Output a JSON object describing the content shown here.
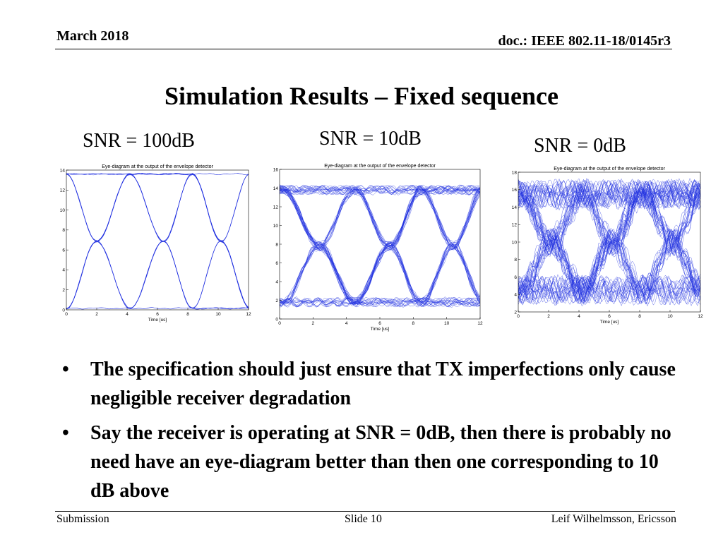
{
  "header": {
    "date": "March 2018",
    "doc": "doc.: IEEE 802.11-18/0145r3"
  },
  "title": "Simulation Results – Fixed sequence",
  "snr_labels": [
    "SNR = 100dB",
    "SNR = 10dB",
    "SNR = 0dB"
  ],
  "bullets": [
    "The specification should just ensure that TX imperfections only cause negligible receiver degradation",
    "Say the receiver is operating at SNR = 0dB, then there is probably no need have an eye-diagram better than then one corresponding to 10 dB above"
  ],
  "bullet_symbol": "•",
  "footer": {
    "left": "Submission",
    "center": "Slide 10",
    "right": "Leif Wilhelmsson, Ericsson"
  },
  "colors": {
    "trace": "#1f2fe0"
  },
  "chart_data": [
    {
      "type": "line",
      "title": "Eye-diagram at the output of the envelope detector",
      "xlabel": "Time [us]",
      "ylabel": "",
      "xlim": [
        0,
        12
      ],
      "ylim": [
        0,
        14
      ],
      "xticks": [
        0,
        2,
        4,
        6,
        8,
        10,
        12
      ],
      "yticks": [
        0,
        2,
        4,
        6,
        8,
        10,
        12,
        14
      ],
      "crossings": [
        2,
        6.4,
        10.2
      ],
      "low": 0.15,
      "high": 13.6,
      "noise": 0.08,
      "traces": 10,
      "grid": false
    },
    {
      "type": "line",
      "title": "Eye-diagram at the output of the envelope detector",
      "xlabel": "Time [us]",
      "ylabel": "",
      "xlim": [
        0,
        12
      ],
      "ylim": [
        0,
        16
      ],
      "xticks": [
        0,
        2,
        4,
        6,
        8,
        10,
        12
      ],
      "yticks": [
        0,
        2,
        4,
        6,
        8,
        10,
        12,
        14,
        16
      ],
      "crossings": [
        2.4,
        6.6,
        10.4
      ],
      "low": 1.8,
      "high": 13.8,
      "noise": 0.5,
      "traces": 70,
      "grid": false
    },
    {
      "type": "line",
      "title": "Eye-diagram at the output of the envelope detector",
      "xlabel": "Time [us]",
      "ylabel": "",
      "xlim": [
        0,
        12
      ],
      "ylim": [
        2,
        18
      ],
      "xticks": [
        0,
        2,
        4,
        6,
        8,
        10,
        12
      ],
      "yticks": [
        2,
        4,
        6,
        8,
        10,
        12,
        14,
        16,
        18
      ],
      "crossings": [
        2.2,
        6.2,
        10.2
      ],
      "low": 4.5,
      "high": 15.5,
      "noise": 1.6,
      "traces": 90,
      "grid": false
    }
  ]
}
